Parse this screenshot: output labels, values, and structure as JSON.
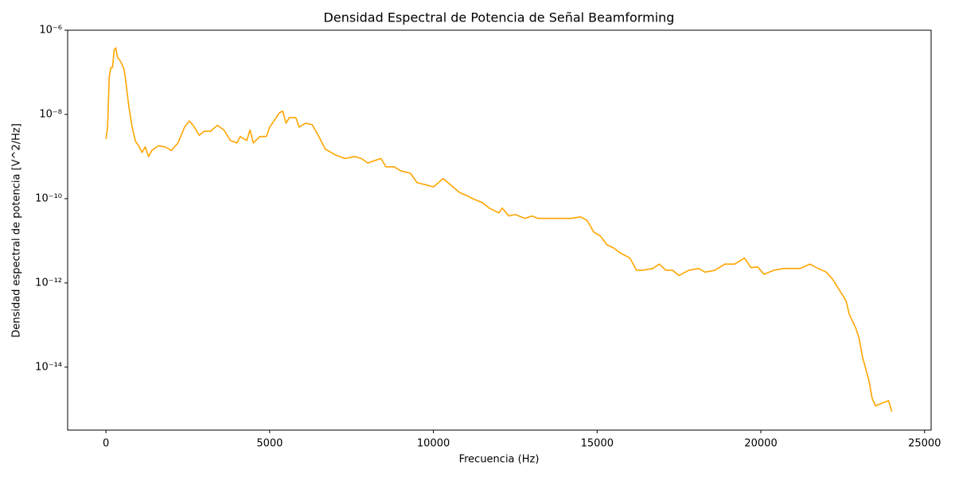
{
  "chart_data": {
    "type": "line",
    "title": "Densidad Espectral de Potencia de Señal Beamforming",
    "x_label": "Frecuencia (Hz)",
    "y_label": "Densidad espectral de potencia [V^2/Hz]",
    "log_y": true,
    "grid": false,
    "xlim": [
      -1170,
      25200
    ],
    "ylim": [
      3.2e-16,
      1e-06
    ],
    "xticks": [
      0,
      5000,
      10000,
      15000,
      20000,
      25000
    ],
    "yticks": [
      {
        "value": 1e-06,
        "label": "10⁻⁶"
      },
      {
        "value": 1e-08,
        "label": "10⁻⁸"
      },
      {
        "value": 1e-10,
        "label": "10⁻¹⁰"
      },
      {
        "value": 1e-12,
        "label": "10⁻¹²"
      },
      {
        "value": 1e-14,
        "label": "10⁻¹⁴"
      }
    ],
    "color": "#ffa500",
    "x": [
      0,
      50,
      100,
      150,
      200,
      250,
      300,
      350,
      450,
      550,
      600,
      700,
      800,
      900,
      1000,
      1100,
      1200,
      1300,
      1400,
      1600,
      1800,
      2000,
      2200,
      2400,
      2550,
      2700,
      2850,
      3000,
      3200,
      3400,
      3600,
      3800,
      4000,
      4100,
      4300,
      4400,
      4500,
      4700,
      4900,
      5000,
      5200,
      5300,
      5400,
      5500,
      5600,
      5800,
      5900,
      6100,
      6300,
      6500,
      6700,
      7000,
      7300,
      7600,
      7800,
      8000,
      8200,
      8400,
      8550,
      8800,
      9000,
      9300,
      9500,
      9800,
      10000,
      10300,
      10500,
      10800,
      11000,
      11200,
      11500,
      11700,
      12000,
      12100,
      12300,
      12500,
      12800,
      13000,
      13200,
      13500,
      13800,
      14200,
      14500,
      14700,
      14900,
      15100,
      15300,
      15500,
      15700,
      16000,
      16200,
      16400,
      16700,
      16900,
      17100,
      17300,
      17500,
      17800,
      18100,
      18300,
      18600,
      18900,
      19200,
      19500,
      19700,
      19900,
      20100,
      20400,
      20700,
      21000,
      21200,
      21500,
      21700,
      22000,
      22200,
      22400,
      22600,
      22700,
      22900,
      23000,
      23100,
      23300,
      23400,
      23500,
      23700,
      23900,
      24000
    ],
    "values": [
      2.6e-09,
      5e-09,
      7.8e-08,
      1.3e-07,
      1.3e-07,
      3.4e-07,
      3.8e-07,
      2.3e-07,
      1.8e-07,
      1.2e-07,
      6.7e-08,
      1.5e-08,
      5e-09,
      2.3e-09,
      1.8e-09,
      1.25e-09,
      1.7e-09,
      1e-09,
      1.4e-09,
      1.8e-09,
      1.7e-09,
      1.4e-09,
      2.1e-09,
      5e-09,
      7e-09,
      5e-09,
      3.2e-09,
      4e-09,
      4e-09,
      5.5e-09,
      4.3e-09,
      2.4e-09,
      2.1e-09,
      3e-09,
      2.4e-09,
      4.3e-09,
      2.1e-09,
      3e-09,
      3e-09,
      5e-09,
      8.4e-09,
      1.1e-08,
      1.2e-08,
      6.2e-09,
      8.4e-09,
      8.4e-09,
      5e-09,
      6.2e-09,
      5.7e-09,
      3e-09,
      1.5e-09,
      1.1e-09,
      9e-10,
      1e-09,
      9e-10,
      7e-10,
      8e-10,
      9e-10,
      5.7e-10,
      5.7e-10,
      4.6e-10,
      4e-10,
      2.4e-10,
      2.1e-10,
      1.9e-10,
      3e-10,
      2.2e-10,
      1.4e-10,
      1.2e-10,
      1e-10,
      8e-11,
      6e-11,
      4.6e-11,
      6e-11,
      3.9e-11,
      4.2e-11,
      3.4e-11,
      3.9e-11,
      3.4e-11,
      3.4e-11,
      3.4e-11,
      3.4e-11,
      3.7e-11,
      3e-11,
      1.6e-11,
      1.3e-11,
      8e-12,
      6.8e-12,
      5.2e-12,
      3.9e-12,
      2e-12,
      2e-12,
      2.2e-12,
      2.8e-12,
      2e-12,
      2e-12,
      1.5e-12,
      2e-12,
      2.2e-12,
      1.8e-12,
      2e-12,
      2.8e-12,
      2.8e-12,
      3.9e-12,
      2.3e-12,
      2.4e-12,
      1.6e-12,
      2e-12,
      2.2e-12,
      2.2e-12,
      2.2e-12,
      2.8e-12,
      2.3e-12,
      1.8e-12,
      1.2e-12,
      6.7e-13,
      3.8e-13,
      1.8e-13,
      8.4e-14,
      4.9e-14,
      1.8e-14,
      4.8e-15,
      1.8e-15,
      1.2e-15,
      1.4e-15,
      1.6e-15,
      8.8e-16
    ]
  }
}
